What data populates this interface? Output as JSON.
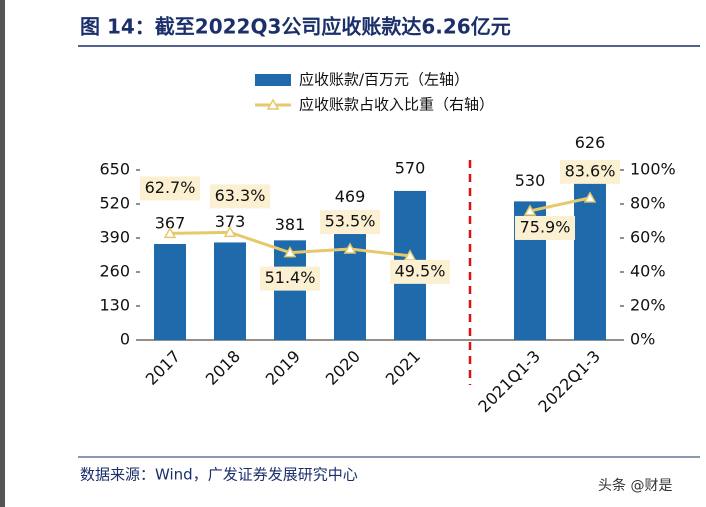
{
  "chart_data": {
    "type": "bar_line",
    "title": "图 14：截至2022Q3公司应收账款达6.26亿元",
    "source": "数据来源：Wind，广发证券发展研究中心",
    "watermark": "头条 @财是",
    "categories": [
      "2017",
      "2018",
      "2019",
      "2020",
      "2021",
      null,
      "2021Q1-3",
      "2022Q1-3"
    ],
    "series": [
      {
        "name": "应收账款/百万元（左轴）",
        "color": "#1f6aaa",
        "type": "bar",
        "values": [
          367,
          373,
          381,
          469,
          570,
          null,
          530,
          626
        ]
      },
      {
        "name": "应收账款占收入比重（右轴）",
        "color": "#e5c96c",
        "type": "line",
        "axis": "y2",
        "values": [
          62.7,
          63.3,
          51.4,
          53.5,
          49.5,
          null,
          75.9,
          83.6
        ],
        "value_labels": [
          "62.7%",
          "63.3%",
          "51.4%",
          "53.5%",
          "49.5%",
          null,
          "75.9%",
          "83.6%"
        ]
      }
    ],
    "ylim": [
      0,
      650
    ],
    "yticks": [
      0,
      130,
      260,
      390,
      520,
      650
    ],
    "y2lim": [
      0,
      100
    ],
    "y2ticks": [
      {
        "value": 0,
        "label": "0%"
      },
      {
        "value": 20,
        "label": "20%"
      },
      {
        "value": 40,
        "label": "40%"
      },
      {
        "value": 60,
        "label": "60%"
      },
      {
        "value": 80,
        "label": "80%"
      },
      {
        "value": 100,
        "label": "100%"
      }
    ]
  }
}
